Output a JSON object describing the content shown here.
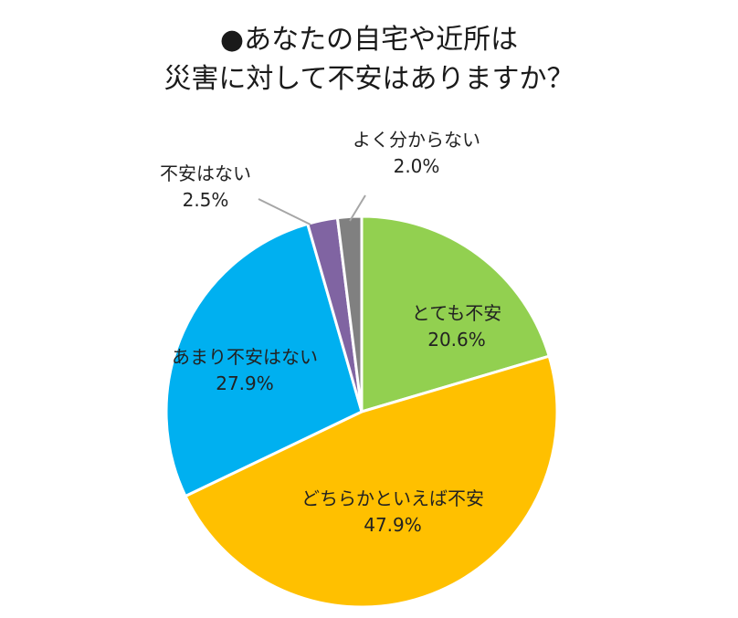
{
  "title": {
    "line1": "●あなたの自宅や近所は",
    "line2": "災害に対して不安はありますか？"
  },
  "chart_data": {
    "type": "pie",
    "title": "●あなたの自宅や近所は災害に対して不安はありますか？",
    "start": "12 o'clock",
    "direction": "clockwise",
    "slices": [
      {
        "label": "とても不安",
        "value": 20.6,
        "display": "20.6%",
        "color": "#92d050"
      },
      {
        "label": "どちらかといえば不安",
        "value": 47.9,
        "display": "47.9%",
        "color": "#ffc000"
      },
      {
        "label": "あまり不安はない",
        "value": 27.9,
        "display": "27.9%",
        "color": "#00b0f0"
      },
      {
        "label": "不安はない",
        "value": 2.5,
        "display": "2.5%",
        "color": "#8064a2"
      },
      {
        "label": "よく分からない",
        "value": 2.0,
        "display": "2.0%",
        "color": "#808080"
      }
    ],
    "legend": "none"
  }
}
